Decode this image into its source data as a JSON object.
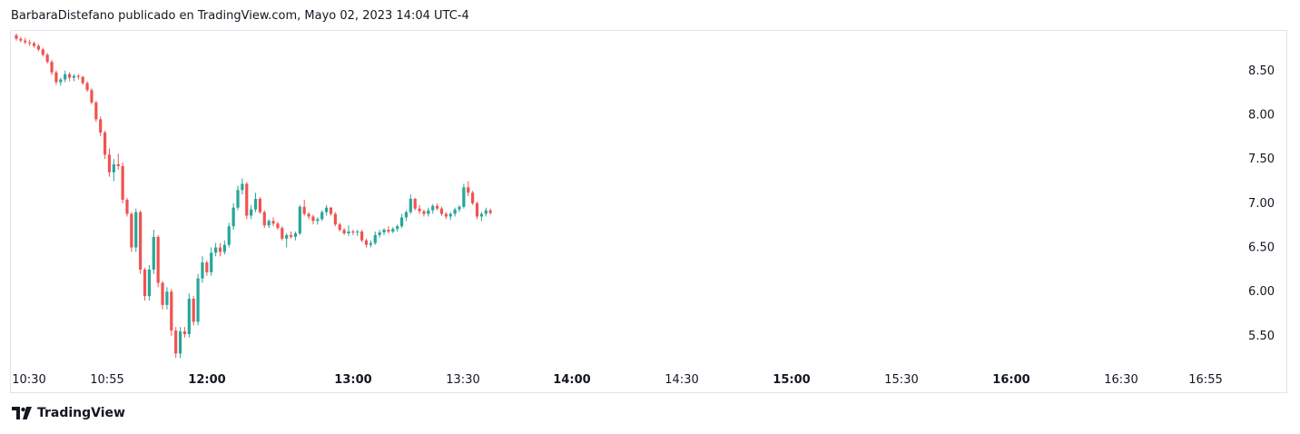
{
  "header": {
    "publisher_line": "BarbaraDistefano publicado en TradingView.com, Mayo 02, 2023 14:04 UTC-4"
  },
  "footer": {
    "brand": "TradingView"
  },
  "colors": {
    "up": "#26a69a",
    "down": "#ef5350",
    "grid_border": "#e0e3eb",
    "text": "#131722"
  },
  "chart_data": {
    "type": "candlestick",
    "title": "",
    "xlabel": "",
    "ylabel": "",
    "ylim": [
      5.15,
      8.95
    ],
    "x_range": [
      "10:30",
      "16:55"
    ],
    "y_ticks": [
      "8.50",
      "8.00",
      "7.50",
      "7.00",
      "6.50",
      "6.00",
      "5.50"
    ],
    "x_ticks": [
      {
        "label": "10:30",
        "bold": false
      },
      {
        "label": "10:55",
        "bold": false
      },
      {
        "label": "12:00",
        "bold": true
      },
      {
        "label": "13:00",
        "bold": true
      },
      {
        "label": "13:30",
        "bold": false
      },
      {
        "label": "14:00",
        "bold": true
      },
      {
        "label": "14:30",
        "bold": false
      },
      {
        "label": "15:00",
        "bold": true
      },
      {
        "label": "15:30",
        "bold": false
      },
      {
        "label": "16:00",
        "bold": true
      },
      {
        "label": "16:30",
        "bold": false
      },
      {
        "label": "16:55",
        "bold": false
      }
    ],
    "series": [
      {
        "candles": [
          [
            8.9,
            8.92,
            8.84,
            8.86
          ],
          [
            8.86,
            8.88,
            8.82,
            8.84
          ],
          [
            8.84,
            8.87,
            8.8,
            8.82
          ],
          [
            8.82,
            8.85,
            8.78,
            8.81
          ],
          [
            8.81,
            8.83,
            8.76,
            8.78
          ],
          [
            8.78,
            8.8,
            8.72,
            8.74
          ],
          [
            8.74,
            8.76,
            8.66,
            8.68
          ],
          [
            8.68,
            8.7,
            8.58,
            8.6
          ],
          [
            8.6,
            8.62,
            8.45,
            8.48
          ],
          [
            8.48,
            8.5,
            8.34,
            8.37
          ],
          [
            8.37,
            8.42,
            8.33,
            8.4
          ],
          [
            8.4,
            8.5,
            8.37,
            8.46
          ],
          [
            8.46,
            8.48,
            8.38,
            8.42
          ],
          [
            8.42,
            8.46,
            8.38,
            8.44
          ],
          [
            8.44,
            8.46,
            8.4,
            8.43
          ],
          [
            8.43,
            8.44,
            8.34,
            8.36
          ],
          [
            8.36,
            8.38,
            8.26,
            8.28
          ],
          [
            8.28,
            8.3,
            8.12,
            8.14
          ],
          [
            8.14,
            8.16,
            7.92,
            7.95
          ],
          [
            7.95,
            7.98,
            7.76,
            7.8
          ],
          [
            7.8,
            7.82,
            7.5,
            7.55
          ],
          [
            7.55,
            7.62,
            7.3,
            7.35
          ],
          [
            7.35,
            7.5,
            7.25,
            7.44
          ],
          [
            7.44,
            7.56,
            7.38,
            7.42
          ],
          [
            7.42,
            7.46,
            7.0,
            7.04
          ],
          [
            7.04,
            7.06,
            6.85,
            6.88
          ],
          [
            6.88,
            6.9,
            6.45,
            6.5
          ],
          [
            6.5,
            6.94,
            6.45,
            6.9
          ],
          [
            6.9,
            6.92,
            6.2,
            6.25
          ],
          [
            6.25,
            6.27,
            5.9,
            5.95
          ],
          [
            5.95,
            6.3,
            5.9,
            6.25
          ],
          [
            6.25,
            6.7,
            6.2,
            6.62
          ],
          [
            6.62,
            6.64,
            6.05,
            6.1
          ],
          [
            6.1,
            6.12,
            5.8,
            5.85
          ],
          [
            5.85,
            6.05,
            5.8,
            6.0
          ],
          [
            6.0,
            6.03,
            5.5,
            5.56
          ],
          [
            5.56,
            5.6,
            5.25,
            5.3
          ],
          [
            5.3,
            5.6,
            5.25,
            5.55
          ],
          [
            5.55,
            5.6,
            5.48,
            5.52
          ],
          [
            5.52,
            5.98,
            5.48,
            5.92
          ],
          [
            5.92,
            5.95,
            5.62,
            5.66
          ],
          [
            5.66,
            6.2,
            5.62,
            6.15
          ],
          [
            6.15,
            6.4,
            6.1,
            6.33
          ],
          [
            6.33,
            6.35,
            6.18,
            6.22
          ],
          [
            6.22,
            6.5,
            6.18,
            6.44
          ],
          [
            6.44,
            6.55,
            6.4,
            6.5
          ],
          [
            6.5,
            6.55,
            6.4,
            6.45
          ],
          [
            6.45,
            6.58,
            6.42,
            6.53
          ],
          [
            6.53,
            6.78,
            6.5,
            6.74
          ],
          [
            6.74,
            7.0,
            6.7,
            6.95
          ],
          [
            6.95,
            7.2,
            6.92,
            7.15
          ],
          [
            7.15,
            7.28,
            7.1,
            7.22
          ],
          [
            7.22,
            7.24,
            6.82,
            6.86
          ],
          [
            6.86,
            6.98,
            6.82,
            6.93
          ],
          [
            6.93,
            7.12,
            6.9,
            7.05
          ],
          [
            7.05,
            7.07,
            6.88,
            6.9
          ],
          [
            6.9,
            6.92,
            6.72,
            6.75
          ],
          [
            6.75,
            6.82,
            6.72,
            6.8
          ],
          [
            6.8,
            6.84,
            6.74,
            6.77
          ],
          [
            6.77,
            6.79,
            6.7,
            6.72
          ],
          [
            6.72,
            6.74,
            6.58,
            6.6
          ],
          [
            6.6,
            6.66,
            6.5,
            6.64
          ],
          [
            6.64,
            6.68,
            6.6,
            6.62
          ],
          [
            6.62,
            6.68,
            6.58,
            6.66
          ],
          [
            6.66,
            6.98,
            6.64,
            6.96
          ],
          [
            6.96,
            7.04,
            6.86,
            6.88
          ],
          [
            6.88,
            6.9,
            6.82,
            6.85
          ],
          [
            6.85,
            6.87,
            6.76,
            6.8
          ],
          [
            6.8,
            6.84,
            6.76,
            6.82
          ],
          [
            6.82,
            6.92,
            6.8,
            6.9
          ],
          [
            6.9,
            6.98,
            6.86,
            6.95
          ],
          [
            6.95,
            6.96,
            6.86,
            6.88
          ],
          [
            6.88,
            6.9,
            6.74,
            6.76
          ],
          [
            6.76,
            6.78,
            6.68,
            6.7
          ],
          [
            6.7,
            6.72,
            6.64,
            6.66
          ],
          [
            6.66,
            6.75,
            6.63,
            6.68
          ],
          [
            6.68,
            6.7,
            6.64,
            6.67
          ],
          [
            6.67,
            6.7,
            6.63,
            6.68
          ],
          [
            6.68,
            6.7,
            6.56,
            6.58
          ],
          [
            6.58,
            6.6,
            6.5,
            6.53
          ],
          [
            6.53,
            6.58,
            6.5,
            6.55
          ],
          [
            6.55,
            6.68,
            6.53,
            6.64
          ],
          [
            6.64,
            6.7,
            6.61,
            6.67
          ],
          [
            6.67,
            6.72,
            6.64,
            6.7
          ],
          [
            6.7,
            6.74,
            6.66,
            6.68
          ],
          [
            6.68,
            6.73,
            6.66,
            6.71
          ],
          [
            6.71,
            6.76,
            6.68,
            6.74
          ],
          [
            6.74,
            6.88,
            6.72,
            6.84
          ],
          [
            6.84,
            6.92,
            6.8,
            6.9
          ],
          [
            6.9,
            7.1,
            6.88,
            7.05
          ],
          [
            7.05,
            7.06,
            6.92,
            6.94
          ],
          [
            6.94,
            6.98,
            6.88,
            6.91
          ],
          [
            6.91,
            6.93,
            6.85,
            6.88
          ],
          [
            6.88,
            6.95,
            6.85,
            6.92
          ],
          [
            6.92,
            6.99,
            6.88,
            6.97
          ],
          [
            6.97,
            7.0,
            6.92,
            6.94
          ],
          [
            6.94,
            6.96,
            6.86,
            6.88
          ],
          [
            6.88,
            6.9,
            6.82,
            6.85
          ],
          [
            6.85,
            6.9,
            6.81,
            6.88
          ],
          [
            6.88,
            6.95,
            6.85,
            6.93
          ],
          [
            6.93,
            6.98,
            6.9,
            6.96
          ],
          [
            6.96,
            7.22,
            6.94,
            7.18
          ],
          [
            7.18,
            7.25,
            7.08,
            7.12
          ],
          [
            7.12,
            7.14,
            6.98,
            7.0
          ],
          [
            7.0,
            7.02,
            6.82,
            6.85
          ],
          [
            6.85,
            6.9,
            6.8,
            6.88
          ],
          [
            6.88,
            6.95,
            6.85,
            6.92
          ],
          [
            6.92,
            6.94,
            6.87,
            6.89
          ]
        ]
      }
    ]
  }
}
